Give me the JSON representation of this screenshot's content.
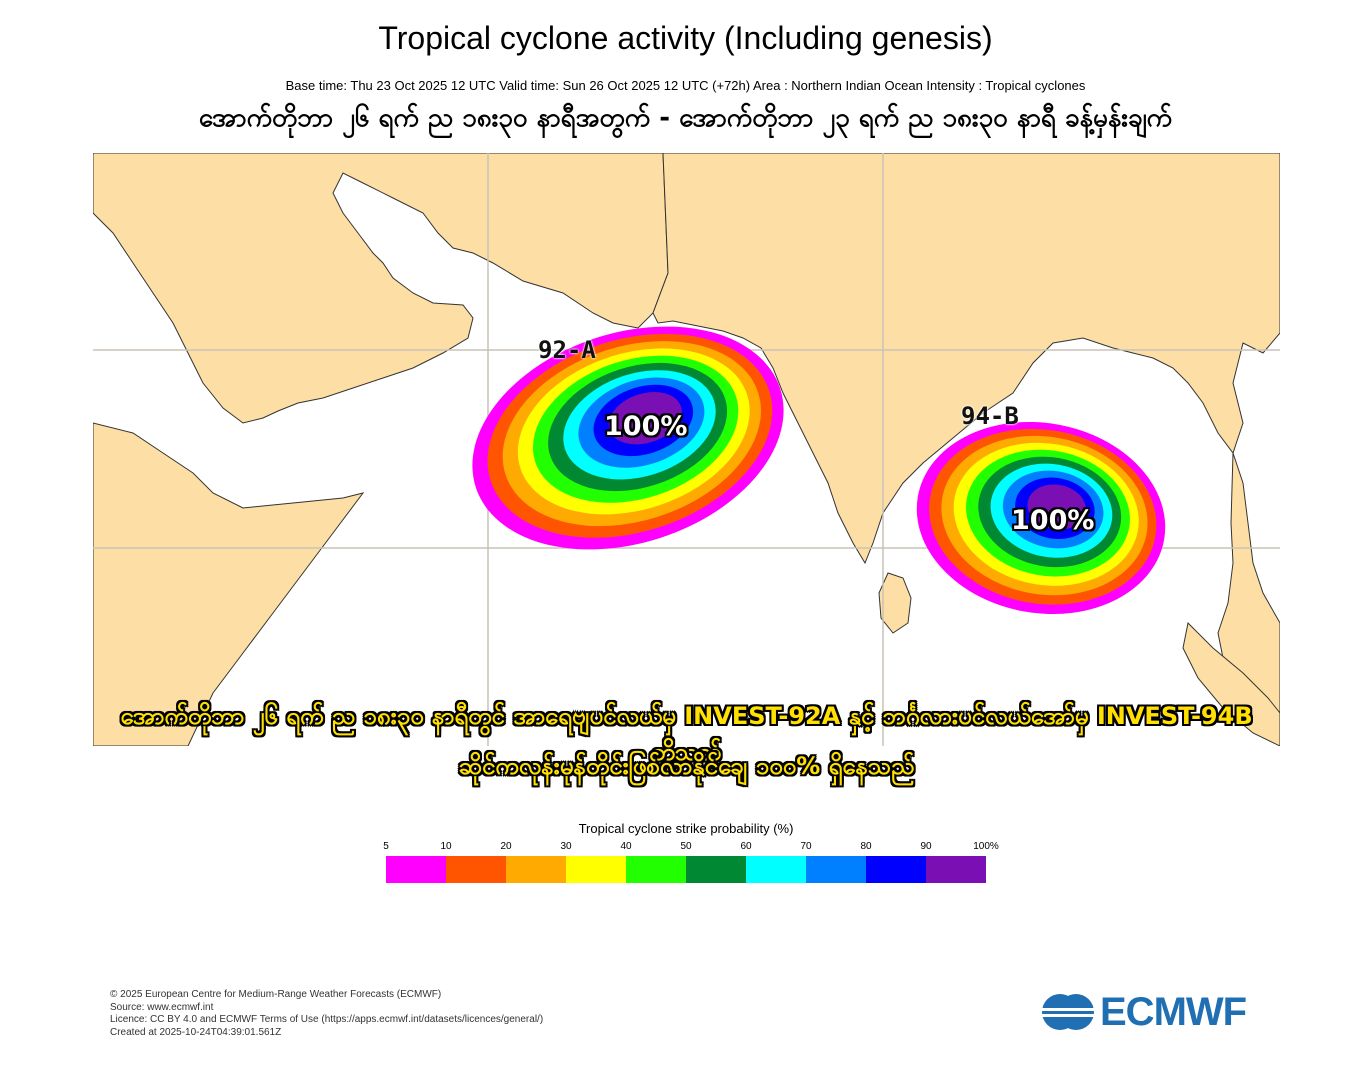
{
  "title": "Tropical cyclone activity (Including genesis)",
  "subtitle": "Base time: Thu 23 Oct 2025 12 UTC Valid time: Sun 26 Oct 2025 12 UTC (+72h) Area : Northern Indian Ocean Intensity : Tropical cyclones",
  "mm_heading": "အောက်တိုဘာ ၂၆ ရက် ည ၁၈း၃၀ နာရီအတွက် - အောက်တိုဘာ ၂၃ ရက် ည ၁၈း၃၀ နာရီ ခန့်မှန်းချက်",
  "storms": [
    {
      "name": "92-A",
      "probability_label": "100%"
    },
    {
      "name": "94-B",
      "probability_label": "100%"
    }
  ],
  "caption_line1": "အောက်တိုဘာ ၂၆ ရက် ည ၁၈း၃၀ နာရီတွင် အာရေဗျပင်လယ်မှ INVEST-92A နှင့် ဘင်္ဂလားပင်လယ်အော်မှ INVEST-94B တို့သည်",
  "caption_line2": "ဆိုင်ကလုန်းမုန်တိုင်းဖြစ်လာနိုင်ချေ ၁၀၀% ရှိနေသည်",
  "legend": {
    "title": "Tropical cyclone strike probability (%)",
    "ticks": [
      "5",
      "10",
      "20",
      "30",
      "40",
      "50",
      "60",
      "70",
      "80",
      "90",
      "100%"
    ],
    "colors": [
      "#ff00ff",
      "#ff5500",
      "#ffaa00",
      "#ffff00",
      "#22ff00",
      "#008833",
      "#00ffff",
      "#0080ff",
      "#0000ff",
      "#7a10b4"
    ]
  },
  "map_colors": {
    "land": "#fddfa5",
    "ocean": "#ffffff",
    "grid": "#c8c3b8",
    "coast": "#333333"
  },
  "footer": {
    "line1": "© 2025 European Centre for Medium-Range Weather Forecasts (ECMWF)",
    "line2": "Source: www.ecmwf.int",
    "line3": "Licence: CC BY 4.0 and ECMWF Terms of Use (https://apps.ecmwf.int/datasets/licences/general/)",
    "line4": "Created at 2025-10-24T04:39:01.561Z"
  },
  "logo": {
    "text": "ECMWF",
    "icon": "ecmwf-logo-icon",
    "color": "#1f6fb2"
  }
}
